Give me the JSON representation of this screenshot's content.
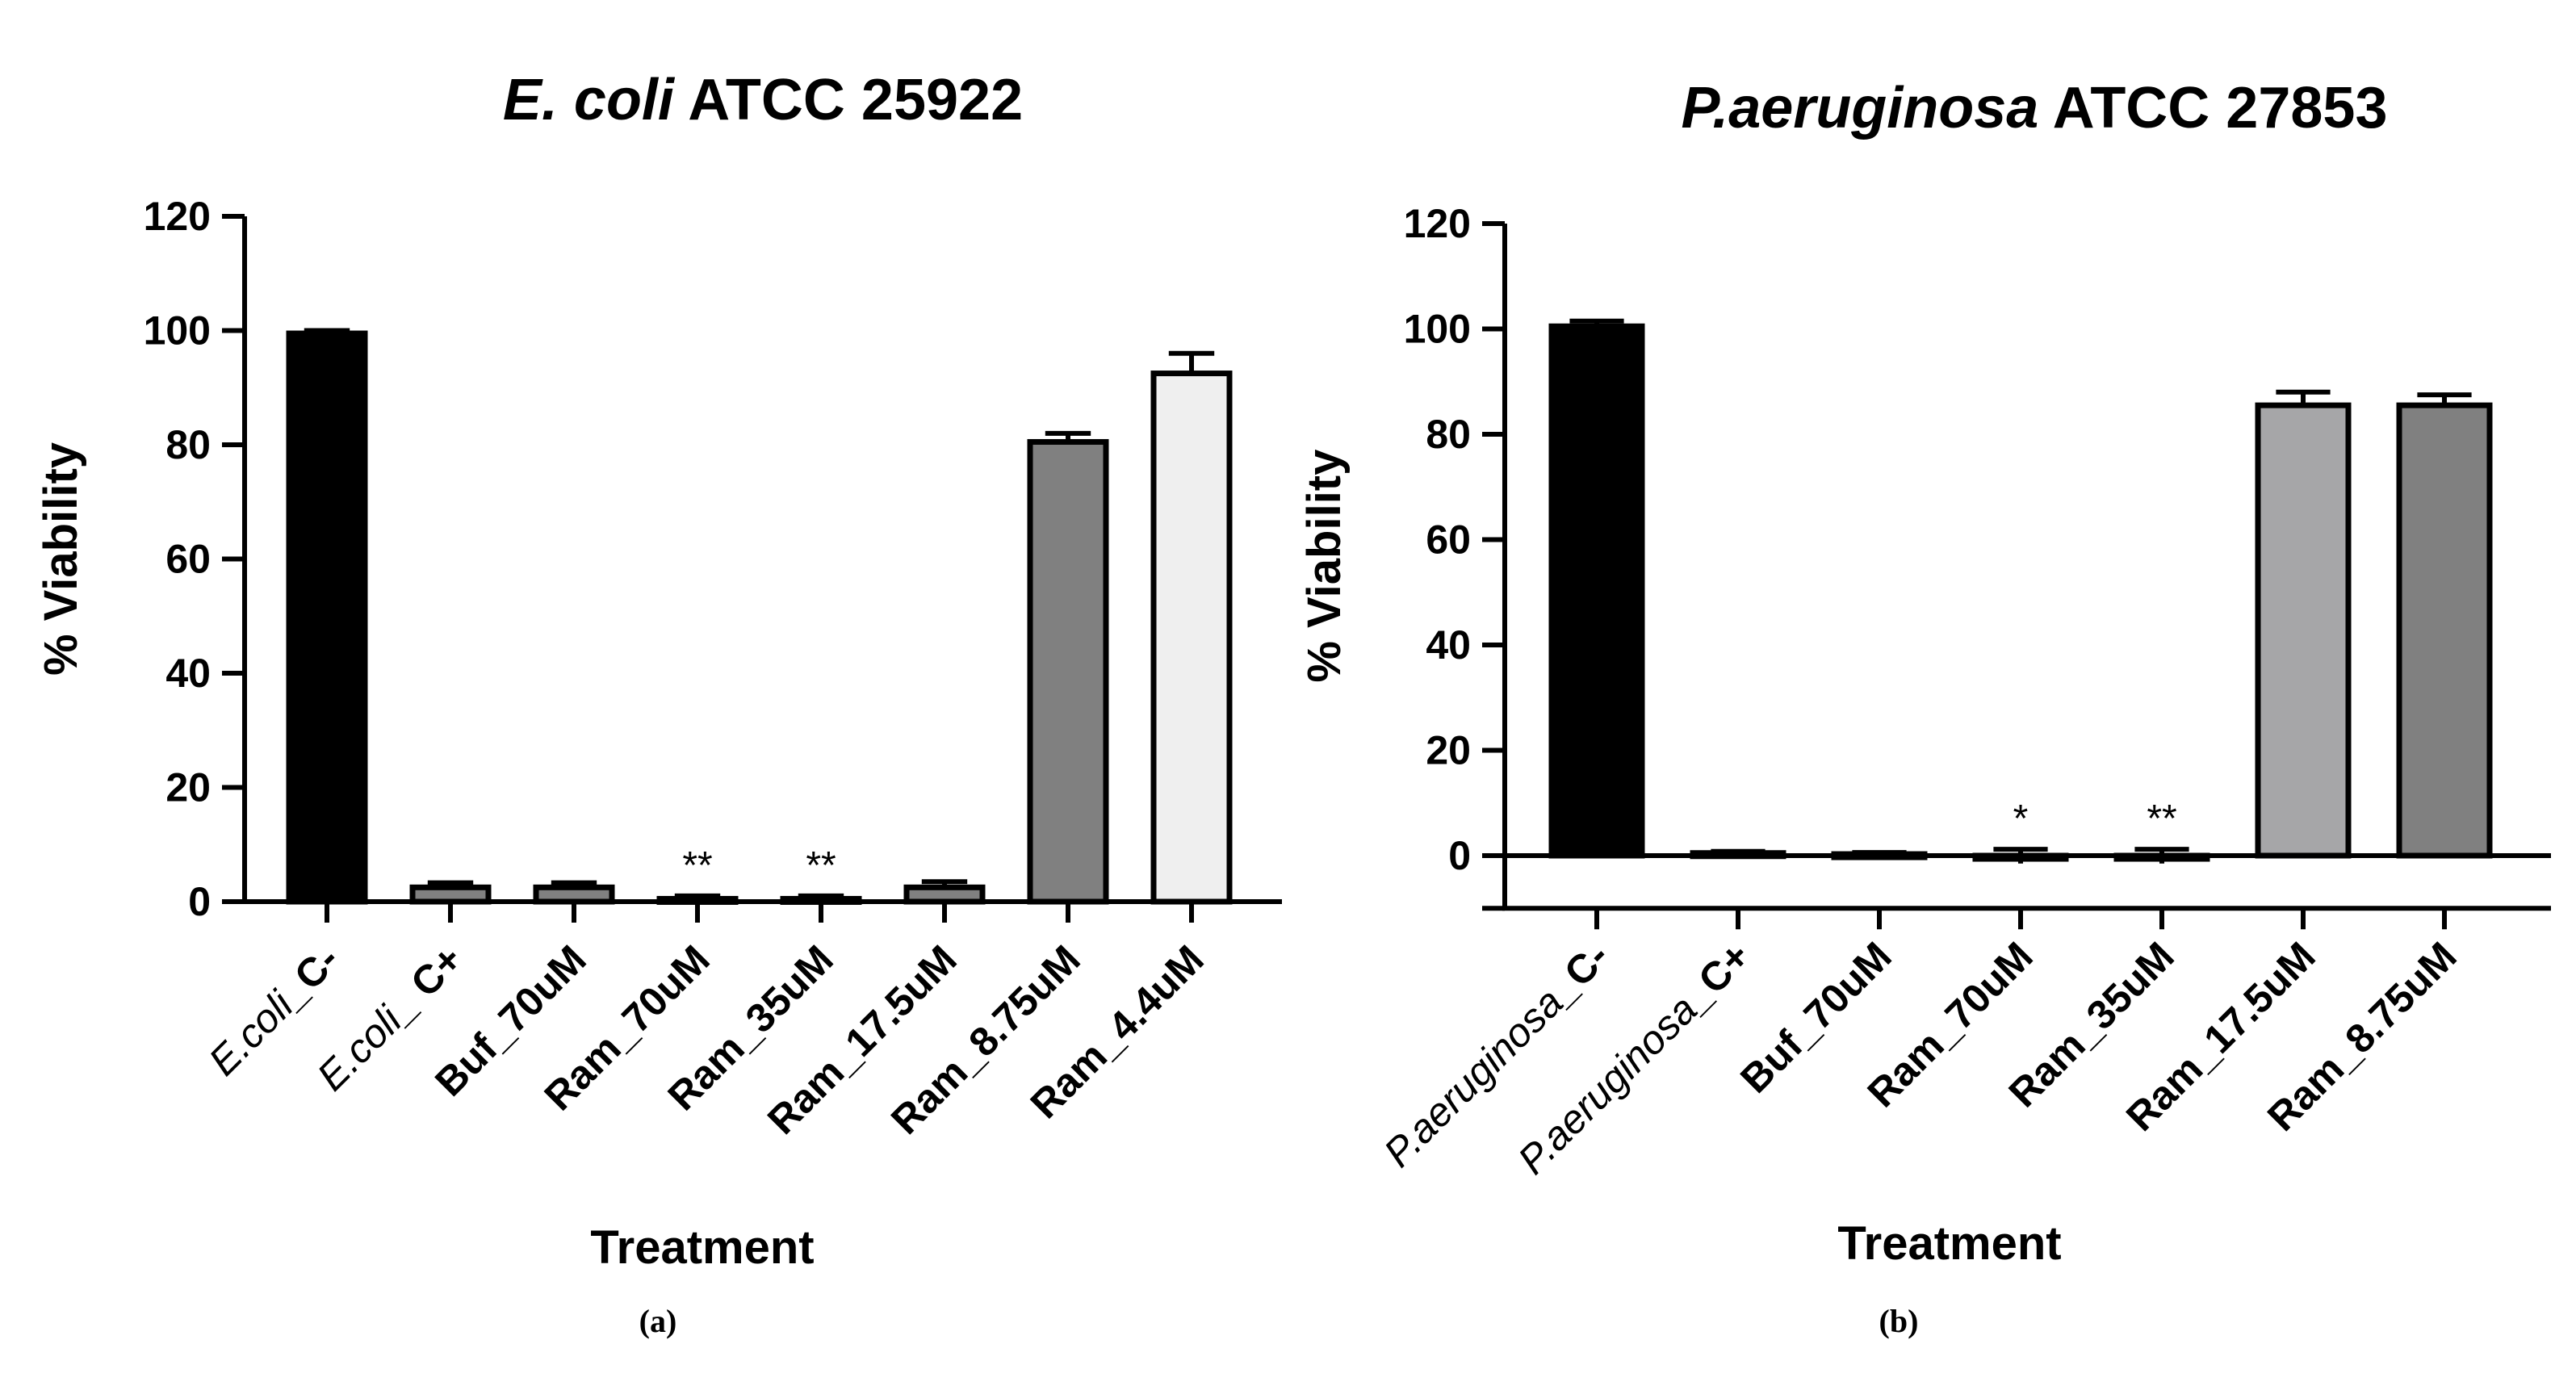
{
  "colors": {
    "axis": "#000000",
    "black_bar": "#000000",
    "dark_gray_bar": "#808080",
    "mid_gray_bar": "#a6a6a8",
    "light_gray_bar": "#efefef",
    "background": "#ffffff"
  },
  "chart_data": [
    {
      "type": "bar",
      "panel_label": "(a)",
      "title": {
        "italic": "E. coli",
        "regular": " ATCC 25922"
      },
      "xlabel": "Treatment",
      "ylabel": "% Viability",
      "ylim": [
        0,
        120
      ],
      "yticks": [
        "0",
        "20",
        "40",
        "60",
        "80",
        "100",
        "120"
      ],
      "categories": [
        {
          "italic": "E.coli_",
          "bold": "C-"
        },
        {
          "italic": "E.coli_",
          "bold": " C+"
        },
        {
          "italic": "",
          "bold": "Buf_70uM"
        },
        {
          "italic": "",
          "bold": "Ram_70uM"
        },
        {
          "italic": "",
          "bold": "Ram_35uM"
        },
        {
          "italic": "",
          "bold": "Ram_17.5uM"
        },
        {
          "italic": "",
          "bold": "Ram_8.75uM"
        },
        {
          "italic": "",
          "bold": "Ram_4.4uM"
        }
      ],
      "values": [
        99.5,
        2.5,
        2.5,
        0.5,
        0.5,
        2.5,
        80.5,
        92.5
      ],
      "errors": [
        0.5,
        0.8,
        0.8,
        0.5,
        0.5,
        1.0,
        1.5,
        3.5
      ],
      "fills": [
        "black_bar",
        "dark_gray_bar",
        "dark_gray_bar",
        "dark_gray_bar",
        "dark_gray_bar",
        "dark_gray_bar",
        "dark_gray_bar",
        "light_gray_bar"
      ],
      "significance": [
        "",
        "",
        "",
        "**",
        "**",
        "",
        "",
        ""
      ]
    },
    {
      "type": "bar",
      "panel_label": "(b)",
      "title": {
        "italic": "P.aeruginosa",
        "regular": " ATCC 27853"
      },
      "xlabel": "Treatment",
      "ylabel": "% Viability",
      "ylim": [
        -10,
        120
      ],
      "yticks": [
        "0",
        "20",
        "40",
        "60",
        "80",
        "100",
        "120"
      ],
      "categories": [
        {
          "italic": "P.aeruginosa_",
          "bold": "C-"
        },
        {
          "italic": "P.aeruginosa_",
          "bold": "C+"
        },
        {
          "italic": "",
          "bold": "Buf_70uM"
        },
        {
          "italic": "",
          "bold": "Ram_70uM"
        },
        {
          "italic": "",
          "bold": "Ram_35uM"
        },
        {
          "italic": "",
          "bold": "Ram_17.5uM"
        },
        {
          "italic": "",
          "bold": "Ram_8.75uM"
        }
      ],
      "values": [
        100.5,
        0.5,
        0.3,
        -0.3,
        -0.3,
        85.5,
        85.5
      ],
      "errors": [
        1.0,
        0.3,
        0.3,
        1.2,
        1.2,
        2.5,
        2.0
      ],
      "fills": [
        "black_bar",
        "dark_gray_bar",
        "dark_gray_bar",
        "dark_gray_bar",
        "dark_gray_bar",
        "mid_gray_bar",
        "dark_gray_bar"
      ],
      "significance": [
        "",
        "",
        "",
        "*",
        "**",
        "",
        ""
      ]
    }
  ]
}
